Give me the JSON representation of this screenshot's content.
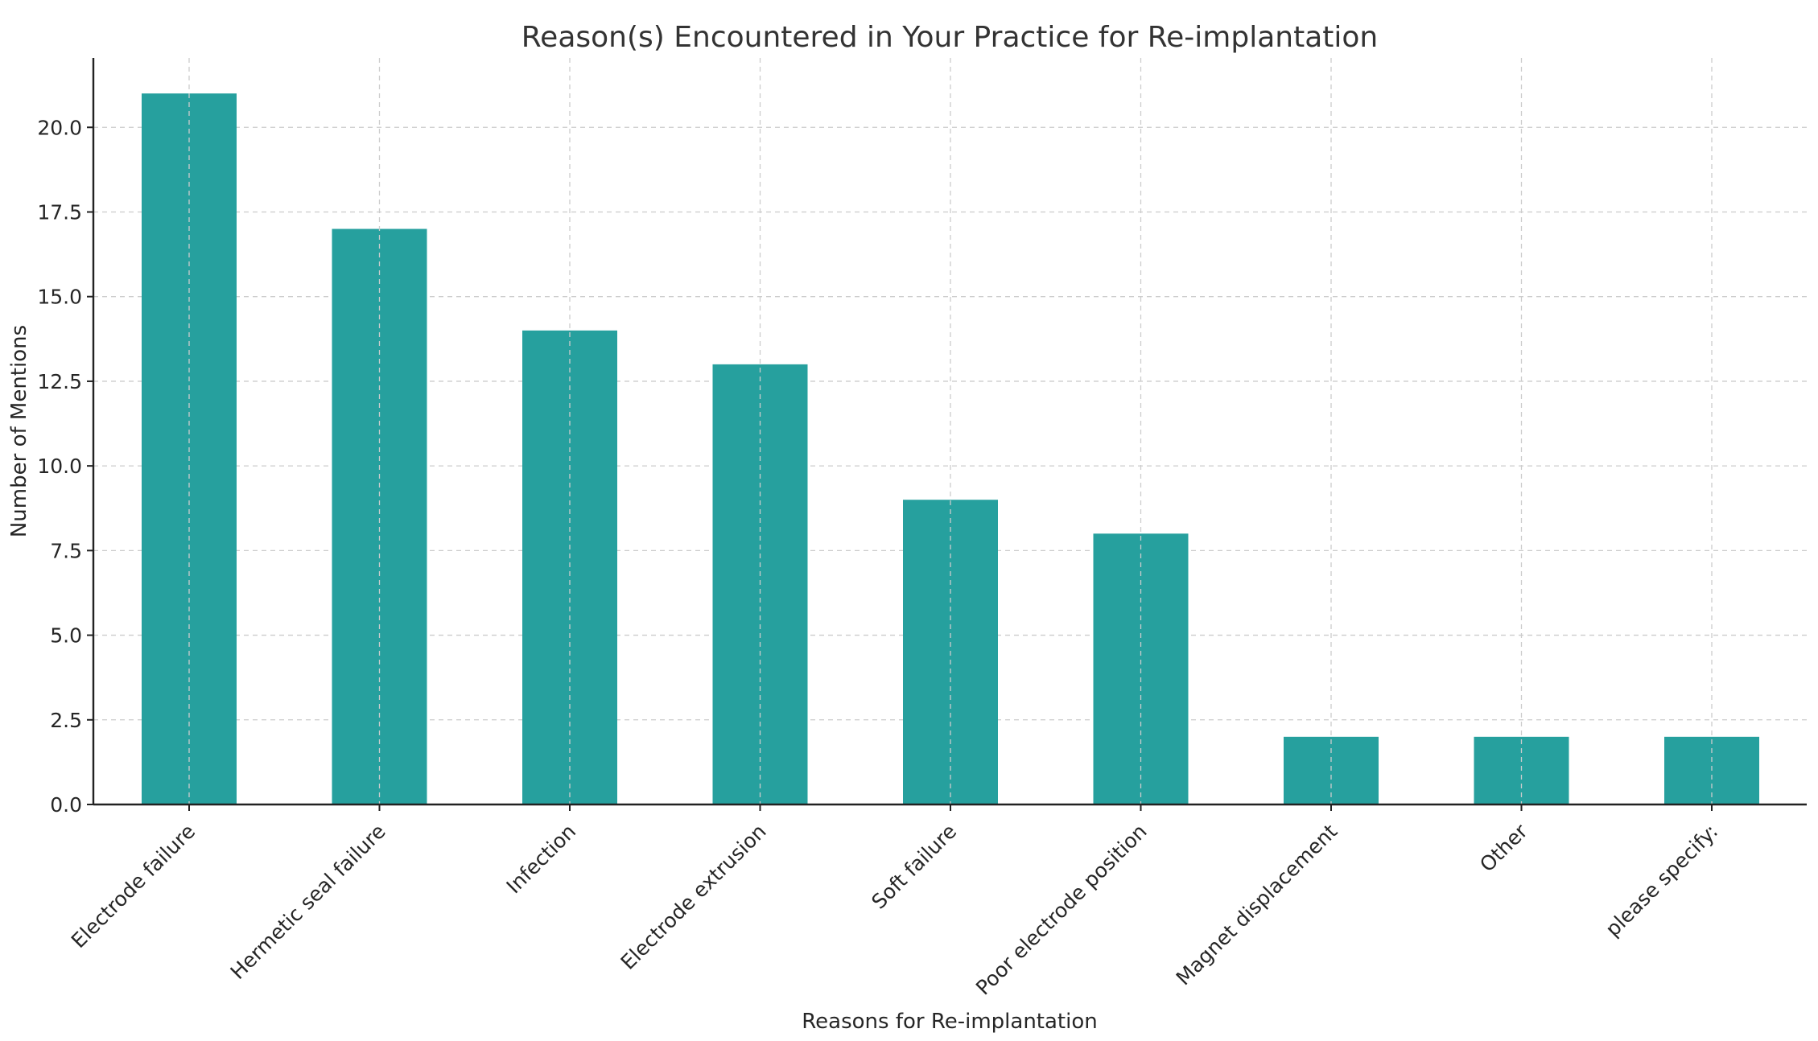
{
  "chart_data": {
    "type": "bar",
    "title": "Reason(s) Encountered in Your Practice for Re-implantation",
    "xlabel": "Reasons for Re-implantation",
    "ylabel": "Number of Mentions",
    "categories": [
      "Electrode failure",
      "Hermetic seal failure",
      "Infection",
      "Electrode extrusion",
      "Soft failure",
      "Poor electrode position",
      "Magnet displacement",
      "Other",
      "please specify:"
    ],
    "values": [
      21,
      17,
      14,
      13,
      9,
      8,
      2,
      2,
      2
    ],
    "ylim": [
      0,
      22.05
    ],
    "yticks": [
      0,
      2.5,
      5,
      7.5,
      10,
      12.5,
      15,
      17.5,
      20
    ],
    "ytick_labels": [
      "0.0",
      "2.5",
      "5.0",
      "7.5",
      "10.0",
      "12.5",
      "15.0",
      "17.5",
      "20.0"
    ],
    "bar_color": "#26a09e",
    "grid": true,
    "legend": "none"
  }
}
